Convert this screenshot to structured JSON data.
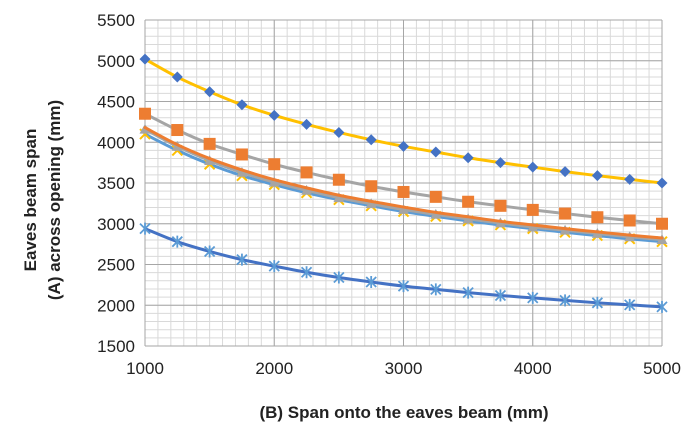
{
  "chart_data": {
    "type": "line",
    "title": "",
    "xlabel": "(B) Span onto the eaves beam (mm)",
    "ylabel_lines": [
      "Eaves beam span",
      "(A) across opening (mm)"
    ],
    "xlim": [
      1000,
      5000
    ],
    "ylim": [
      1500,
      5500
    ],
    "x_ticks": [
      1000,
      2000,
      3000,
      4000,
      5000
    ],
    "y_ticks": [
      1500,
      2000,
      2500,
      3000,
      3500,
      4000,
      4500,
      5000,
      5500
    ],
    "grid": true,
    "legend": "none",
    "x": [
      1000,
      1250,
      1500,
      1750,
      2000,
      2250,
      2500,
      2750,
      3000,
      3250,
      3500,
      3750,
      4000,
      4250,
      4500,
      4750,
      5000
    ],
    "series": [
      {
        "color": "#ffc000",
        "marker": "diamond",
        "marker_color": "#4472c4",
        "values": [
          5020,
          4800,
          4620,
          4460,
          4330,
          4220,
          4120,
          4030,
          3950,
          3880,
          3810,
          3750,
          3695,
          3640,
          3590,
          3545,
          3500
        ]
      },
      {
        "color": "#a5a5a5",
        "marker": "square",
        "marker_color": "#ed7d31",
        "values": [
          4350,
          4150,
          3980,
          3850,
          3730,
          3630,
          3540,
          3460,
          3390,
          3330,
          3270,
          3220,
          3170,
          3125,
          3080,
          3040,
          3000
        ]
      },
      {
        "color": "#ed7d31",
        "marker": "none",
        "values": [
          4180,
          3970,
          3800,
          3660,
          3540,
          3440,
          3350,
          3275,
          3205,
          3140,
          3085,
          3030,
          2985,
          2940,
          2900,
          2860,
          2825
        ]
      },
      {
        "color": "#a5a5a5",
        "marker": "triangle",
        "marker_color": "#a5a5a5",
        "values": [
          4160,
          3950,
          3775,
          3630,
          3510,
          3410,
          3320,
          3245,
          3175,
          3115,
          3060,
          3010,
          2960,
          2920,
          2880,
          2840,
          2805
        ]
      },
      {
        "color": "#5b9bd5",
        "marker": "x",
        "marker_color": "#ffc000",
        "values": [
          4100,
          3900,
          3730,
          3590,
          3480,
          3380,
          3295,
          3220,
          3150,
          3090,
          3035,
          2985,
          2940,
          2895,
          2855,
          2815,
          2780
        ]
      },
      {
        "color": "#4472c4",
        "marker": "star",
        "marker_color": "#5b9bd5",
        "values": [
          2940,
          2780,
          2660,
          2560,
          2480,
          2405,
          2340,
          2285,
          2235,
          2195,
          2155,
          2120,
          2090,
          2060,
          2030,
          2005,
          1980
        ]
      }
    ]
  }
}
